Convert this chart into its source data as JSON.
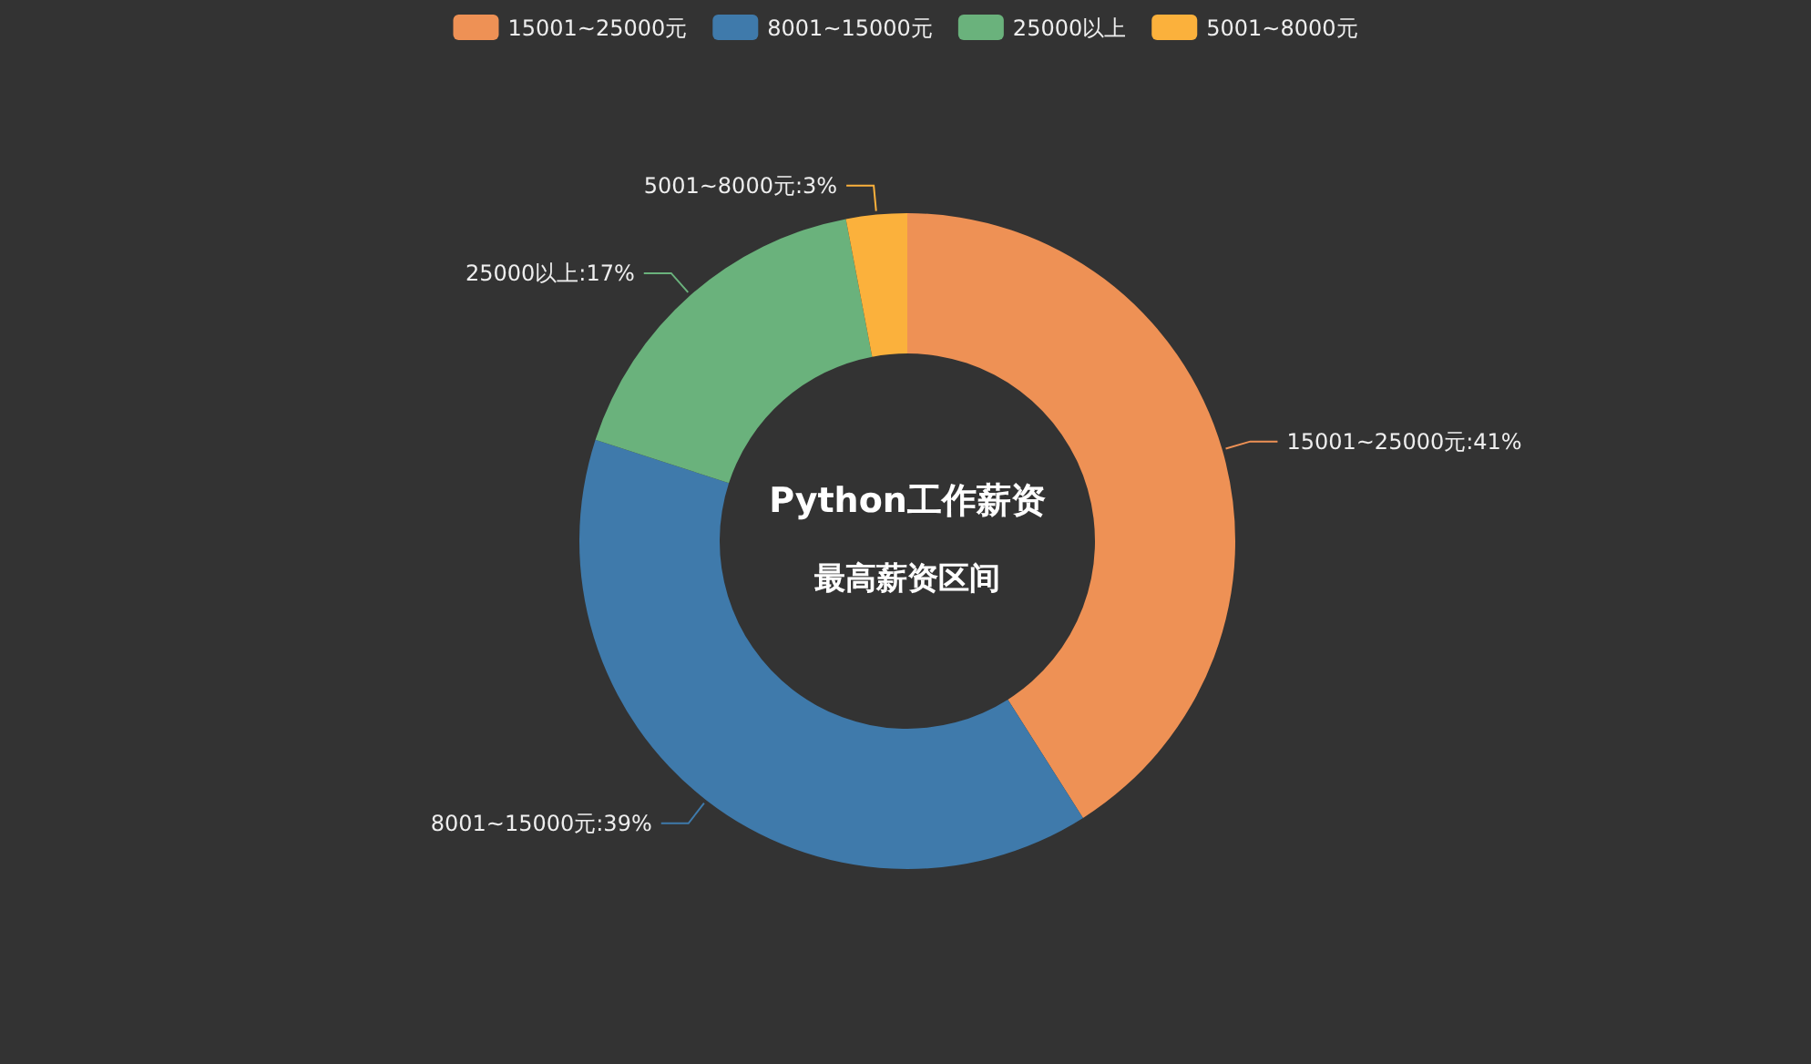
{
  "chart_data": {
    "type": "donut",
    "title": "Python工作薪资",
    "subtitle": "最高薪资区间",
    "categories": [
      "15001~25000元",
      "8001~15000元",
      "25000以上",
      "5001~8000元"
    ],
    "values": [
      41,
      39,
      17,
      3
    ],
    "colors": [
      "#ee9155",
      "#3f7aab",
      "#6ab27c",
      "#fbb13c"
    ],
    "value_labels": [
      "15001~25000元:41%",
      "8001~15000元:39%",
      "25000以上:17%",
      "5001~8000元:3%"
    ],
    "legend": "top"
  }
}
